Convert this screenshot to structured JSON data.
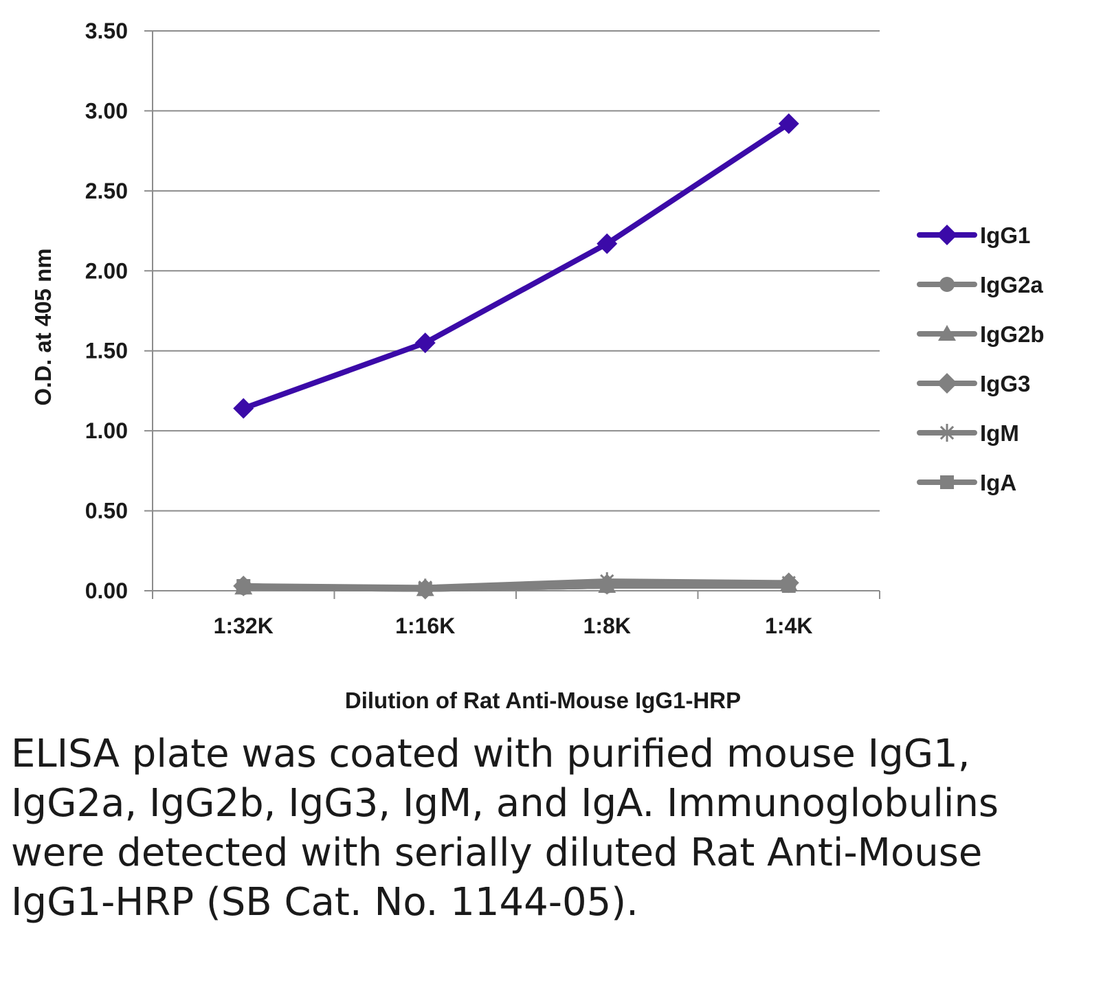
{
  "chart_data": {
    "type": "line",
    "categories": [
      "1:32K",
      "1:16K",
      "1:8K",
      "1:4K"
    ],
    "xlabel": "Dilution of Rat Anti-Mouse IgG1-HRP",
    "ylabel": "O.D. at 405 nm",
    "ylim": [
      0,
      3.5
    ],
    "yticks": [
      "0.00",
      "0.50",
      "1.00",
      "1.50",
      "2.00",
      "2.50",
      "3.00",
      "3.50"
    ],
    "grid": "horizontal",
    "legend_position": "right",
    "series": [
      {
        "name": "IgG1",
        "color": "#3b0aa8",
        "marker": "diamond",
        "values": [
          1.14,
          1.55,
          2.17,
          2.92
        ]
      },
      {
        "name": "IgG2a",
        "color": "#808080",
        "marker": "circle",
        "values": [
          0.02,
          0.01,
          0.03,
          0.04
        ]
      },
      {
        "name": "IgG2b",
        "color": "#808080",
        "marker": "triangle",
        "values": [
          0.02,
          0.01,
          0.03,
          0.04
        ]
      },
      {
        "name": "IgG3",
        "color": "#808080",
        "marker": "diamond",
        "values": [
          0.03,
          0.01,
          0.04,
          0.05
        ]
      },
      {
        "name": "IgM",
        "color": "#808080",
        "marker": "star",
        "values": [
          0.03,
          0.02,
          0.06,
          0.05
        ]
      },
      {
        "name": "IgA",
        "color": "#808080",
        "marker": "square",
        "values": [
          0.03,
          0.01,
          0.03,
          0.03
        ]
      }
    ]
  },
  "caption": "ELISA plate was coated with purified mouse IgG1, IgG2a, IgG2b, IgG3, IgM, and IgA. Immunoglobulins were detected with serially diluted Rat Anti-Mouse IgG1-HRP (SB Cat. No. 1144-05)."
}
